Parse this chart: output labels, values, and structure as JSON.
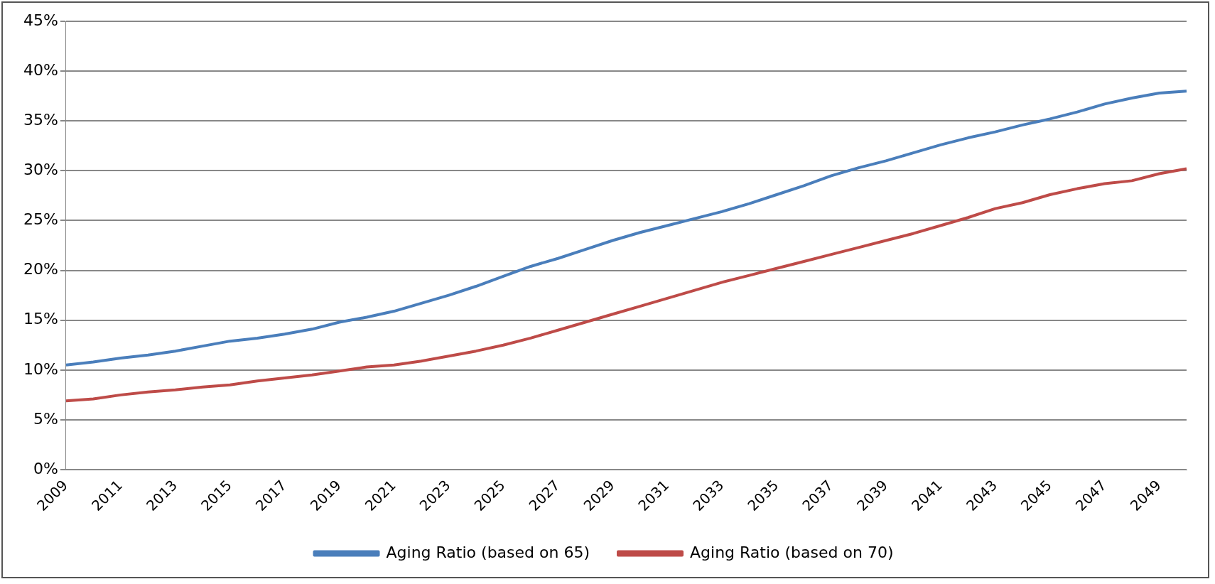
{
  "chart_data": {
    "type": "line",
    "categories": [
      "2009",
      null,
      "2011",
      null,
      "2013",
      null,
      "2015",
      null,
      "2017",
      null,
      "2019",
      null,
      "2021",
      null,
      "2023",
      null,
      "2025",
      null,
      "2027",
      null,
      "2029",
      null,
      "2031",
      null,
      "2033",
      null,
      "2035",
      null,
      "2037",
      null,
      "2039",
      null,
      "2041",
      null,
      "2043",
      null,
      "2045",
      null,
      "2047",
      null,
      "2049",
      null
    ],
    "series": [
      {
        "name": "Aging Ratio (based on 65)",
        "color": "#4a7ebb",
        "values": [
          10.5,
          10.8,
          11.2,
          11.5,
          11.9,
          12.4,
          12.9,
          13.2,
          13.6,
          14.1,
          14.8,
          15.3,
          15.9,
          16.7,
          17.5,
          18.4,
          19.4,
          20.4,
          21.2,
          22.1,
          23.0,
          23.8,
          24.5,
          25.2,
          25.9,
          26.7,
          27.6,
          28.5,
          29.5,
          30.3,
          31.0,
          31.8,
          32.6,
          33.3,
          33.9,
          34.6,
          35.2,
          35.9,
          36.7,
          37.3,
          37.8,
          38.0
        ]
      },
      {
        "name": "Aging Ratio (based on 70)",
        "color": "#be4b48",
        "values": [
          6.9,
          7.1,
          7.5,
          7.8,
          8.0,
          8.3,
          8.5,
          8.9,
          9.2,
          9.5,
          9.9,
          10.3,
          10.5,
          10.9,
          11.4,
          11.9,
          12.5,
          13.2,
          14.0,
          14.8,
          15.6,
          16.4,
          17.2,
          18.0,
          18.8,
          19.5,
          20.2,
          20.9,
          21.6,
          22.3,
          23.0,
          23.7,
          24.5,
          25.3,
          26.2,
          26.8,
          27.6,
          28.2,
          28.7,
          29.0,
          29.7,
          30.2
        ]
      }
    ],
    "ylim": [
      0,
      45
    ],
    "yticks": [
      {
        "value": 0,
        "label": "0%"
      },
      {
        "value": 5,
        "label": "5%"
      },
      {
        "value": 10,
        "label": "10%"
      },
      {
        "value": 15,
        "label": "15%"
      },
      {
        "value": 20,
        "label": "20%"
      },
      {
        "value": 25,
        "label": "25%"
      },
      {
        "value": 30,
        "label": "30%"
      },
      {
        "value": 35,
        "label": "35%"
      },
      {
        "value": 40,
        "label": "40%"
      },
      {
        "value": 45,
        "label": "45%"
      }
    ],
    "grid": "y",
    "legend": "bottom",
    "marker": "none",
    "line_style": "solid"
  }
}
